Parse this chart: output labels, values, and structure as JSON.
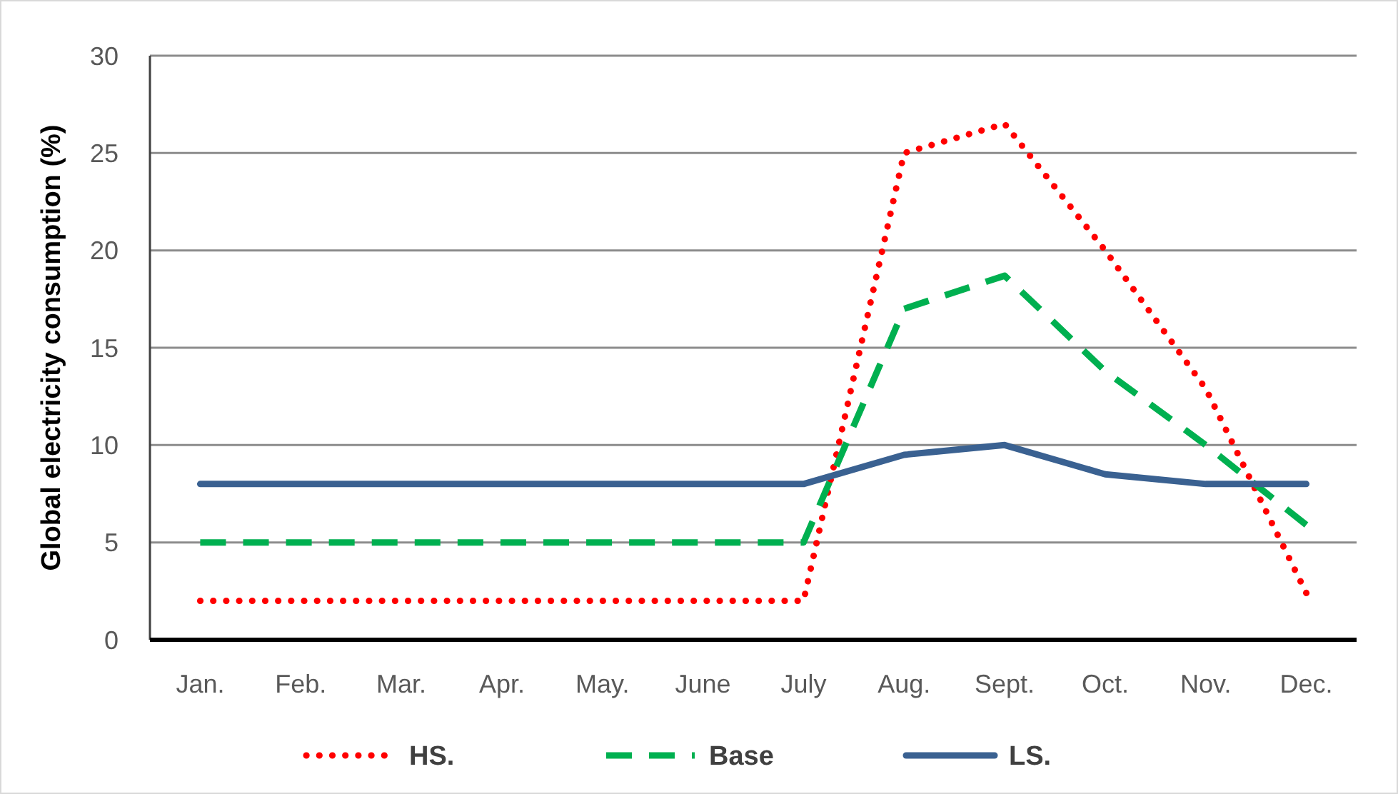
{
  "chart_data": {
    "type": "line",
    "ylabel": "Global electricity consumption (%)",
    "categories": [
      "Jan.",
      "Feb.",
      "Mar.",
      "Apr.",
      "May.",
      "June",
      "July",
      "Aug.",
      "Sept.",
      "Oct.",
      "Nov.",
      "Dec."
    ],
    "ylim": [
      0,
      30
    ],
    "yticks": [
      0,
      5,
      10,
      15,
      20,
      25,
      30
    ],
    "grid": "y",
    "legend": "bottom",
    "series": [
      {
        "name": "HS.",
        "color": "#ff0000",
        "line_style": "dotted",
        "values": [
          2,
          2,
          2,
          2,
          2,
          2,
          2,
          25,
          26.5,
          20,
          12.9,
          2.4
        ]
      },
      {
        "name": "Base",
        "color": "#00b050",
        "line_style": "dashed",
        "values": [
          5,
          5,
          5,
          5,
          5,
          5,
          5,
          17,
          18.7,
          13.8,
          10,
          5.9
        ]
      },
      {
        "name": "LS.",
        "color": "#3a6191",
        "line_style": "solid",
        "values": [
          8,
          8,
          8,
          8,
          8,
          8,
          8,
          9.5,
          10,
          8.5,
          8,
          8
        ]
      }
    ]
  }
}
